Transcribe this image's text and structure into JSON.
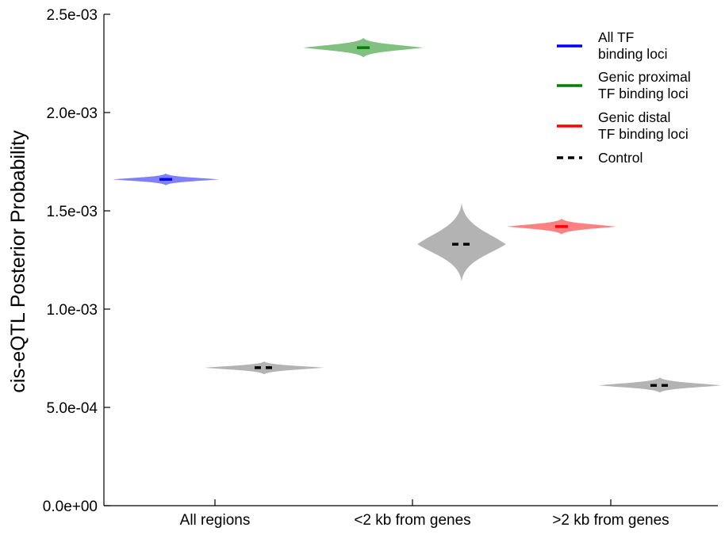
{
  "chart_data": {
    "type": "violin",
    "ylabel": "cis-eQTL Posterior Probability",
    "ylim": [
      0,
      0.0025
    ],
    "yticks": [
      0,
      0.0005,
      0.001,
      0.0015,
      0.002,
      0.0025
    ],
    "ytick_labels": [
      "0.0e+00",
      "5.0e-04",
      "1.0e-03",
      "1.5e-03",
      "2.0e-03",
      "2.5e-03"
    ],
    "categories": [
      "All regions",
      "<2 kb from genes",
      ">2 kb from genes"
    ],
    "legend_position": "top-right",
    "legend": [
      {
        "lines": [
          "All TF",
          "binding loci"
        ],
        "color": "#0000ff",
        "style": "solid"
      },
      {
        "lines": [
          "Genic proximal",
          "TF binding loci"
        ],
        "color": "#008000",
        "style": "solid"
      },
      {
        "lines": [
          "Genic distal",
          "TF binding loci"
        ],
        "color": "#ff0000",
        "style": "solid"
      },
      {
        "lines": [
          "Control"
        ],
        "color": "#000000",
        "style": "dashed"
      }
    ],
    "violins": [
      {
        "group": "All regions",
        "kind": "tf",
        "median": 0.00166,
        "low": 0.00163,
        "high": 0.00169,
        "width": 0.74,
        "fill": "#8080ff",
        "median_color": "#0000ff"
      },
      {
        "group": "All regions",
        "kind": "control",
        "median": 0.000702,
        "low": 0.000668,
        "high": 0.000734,
        "width": 0.84,
        "fill": "#b3b3b3",
        "median_color": "#000000"
      },
      {
        "group": "<2 kb from genes",
        "kind": "tf",
        "median": 0.00233,
        "low": 0.00228,
        "high": 0.00238,
        "width": 0.84,
        "fill": "#80c080",
        "median_color": "#008000"
      },
      {
        "group": "<2 kb from genes",
        "kind": "control",
        "median": 0.00133,
        "low": 0.00114,
        "high": 0.00154,
        "width": 0.62,
        "fill": "#b3b3b3",
        "median_color": "#000000"
      },
      {
        "group": ">2 kb from genes",
        "kind": "tf",
        "median": 0.00142,
        "low": 0.00138,
        "high": 0.00146,
        "width": 0.76,
        "fill": "#ff8080",
        "median_color": "#ff0000"
      },
      {
        "group": ">2 kb from genes",
        "kind": "control",
        "median": 0.000612,
        "low": 0.000575,
        "high": 0.000652,
        "width": 0.86,
        "fill": "#b3b3b3",
        "median_color": "#000000"
      }
    ]
  }
}
